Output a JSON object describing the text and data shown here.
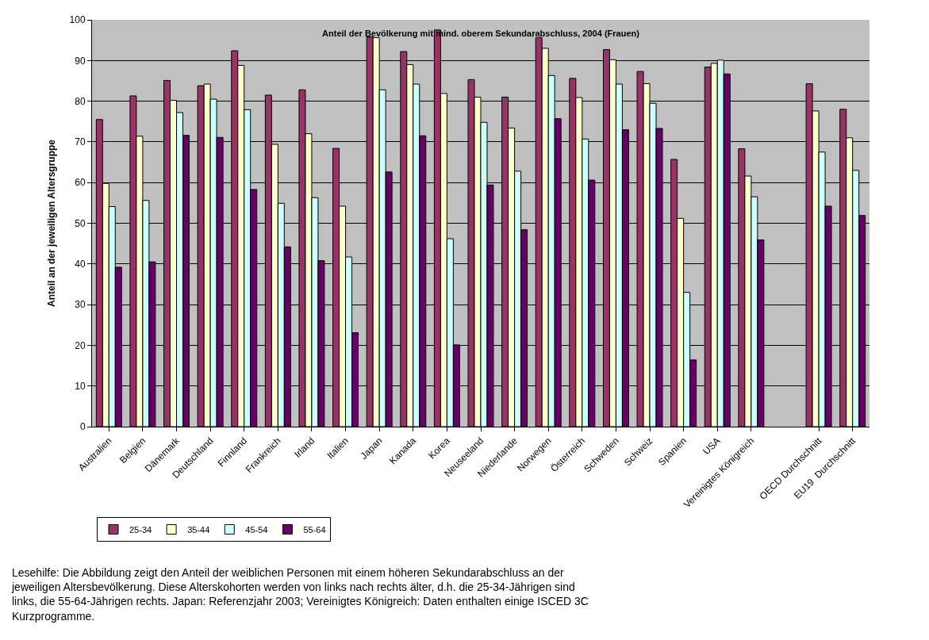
{
  "chart_data": {
    "type": "bar",
    "title": "Anteil der Bevölkerung mit mind. oberem Sekundarabschluss, 2004 (Frauen)",
    "ylabel": "Anteil an der jeweiligen Altersgruppe",
    "categories": [
      "Australien",
      "Belgien",
      "Dänemark",
      "Deutschland",
      "Finnland",
      "Frankreich",
      "Irland",
      "Italien",
      "Japan",
      "Kanada",
      "Korea",
      "Neuseeland",
      "Niederlande",
      "Norwegen",
      "Österreich",
      "Schweden",
      "Schweiz",
      "Spanien",
      "USA",
      "Vereinigtes Königreich",
      null,
      "OECD Durchschnitt",
      "EU19  Durchschnitt"
    ],
    "series": [
      {
        "name": "25-34",
        "color": "#993366",
        "values": [
          75.5,
          81.3,
          85.1,
          83.8,
          92.4,
          81.5,
          82.8,
          68.4,
          95.8,
          92.2,
          97.5,
          85.3,
          81.0,
          95.6,
          85.6,
          92.7,
          87.3,
          65.7,
          88.4,
          68.3,
          null,
          84.3,
          78.0
        ]
      },
      {
        "name": "35-44",
        "color": "#ffffcc",
        "values": [
          59.8,
          71.4,
          80.2,
          84.2,
          88.8,
          69.4,
          72.0,
          54.2,
          95.6,
          89.0,
          81.9,
          81.0,
          73.4,
          93.0,
          80.9,
          90.2,
          84.3,
          51.2,
          89.3,
          61.6,
          null,
          77.6,
          71.0
        ]
      },
      {
        "name": "45-54",
        "color": "#ccffff",
        "values": [
          54.1,
          55.6,
          77.2,
          80.5,
          77.9,
          54.9,
          56.3,
          41.7,
          82.8,
          84.2,
          46.2,
          74.8,
          62.8,
          86.3,
          70.7,
          84.2,
          79.5,
          33.0,
          90.1,
          56.5,
          null,
          67.5,
          63.0
        ]
      },
      {
        "name": "55-64",
        "color": "#660066",
        "values": [
          39.2,
          40.5,
          71.6,
          71.1,
          58.3,
          44.2,
          40.8,
          23.1,
          62.6,
          71.5,
          20.1,
          59.4,
          48.4,
          75.7,
          60.6,
          73.0,
          73.3,
          16.4,
          86.7,
          45.9,
          null,
          54.2,
          51.9
        ]
      }
    ],
    "ylim": [
      0,
      100
    ],
    "yticks": [
      0,
      10,
      20,
      30,
      40,
      50,
      60,
      70,
      80,
      90,
      100
    ],
    "grid": "y",
    "legend": "bottom left",
    "annotations": [
      "Lesehilfe: Die Abbildung zeigt den Anteil der weiblichen Personen mit einem höheren Sekundarabschluss an der jeweiligen Altersbevölkerung. Diese Alterskohorten werden von links nach rechts älter, d.h. die 25-34-Jährigen sind links, die 55-64-Jährigen rechts. Japan: Referenzjahr 2003; Vereinigtes Königreich: Daten enthalten einige ISCED 3C Kurzprogramme."
    ]
  }
}
